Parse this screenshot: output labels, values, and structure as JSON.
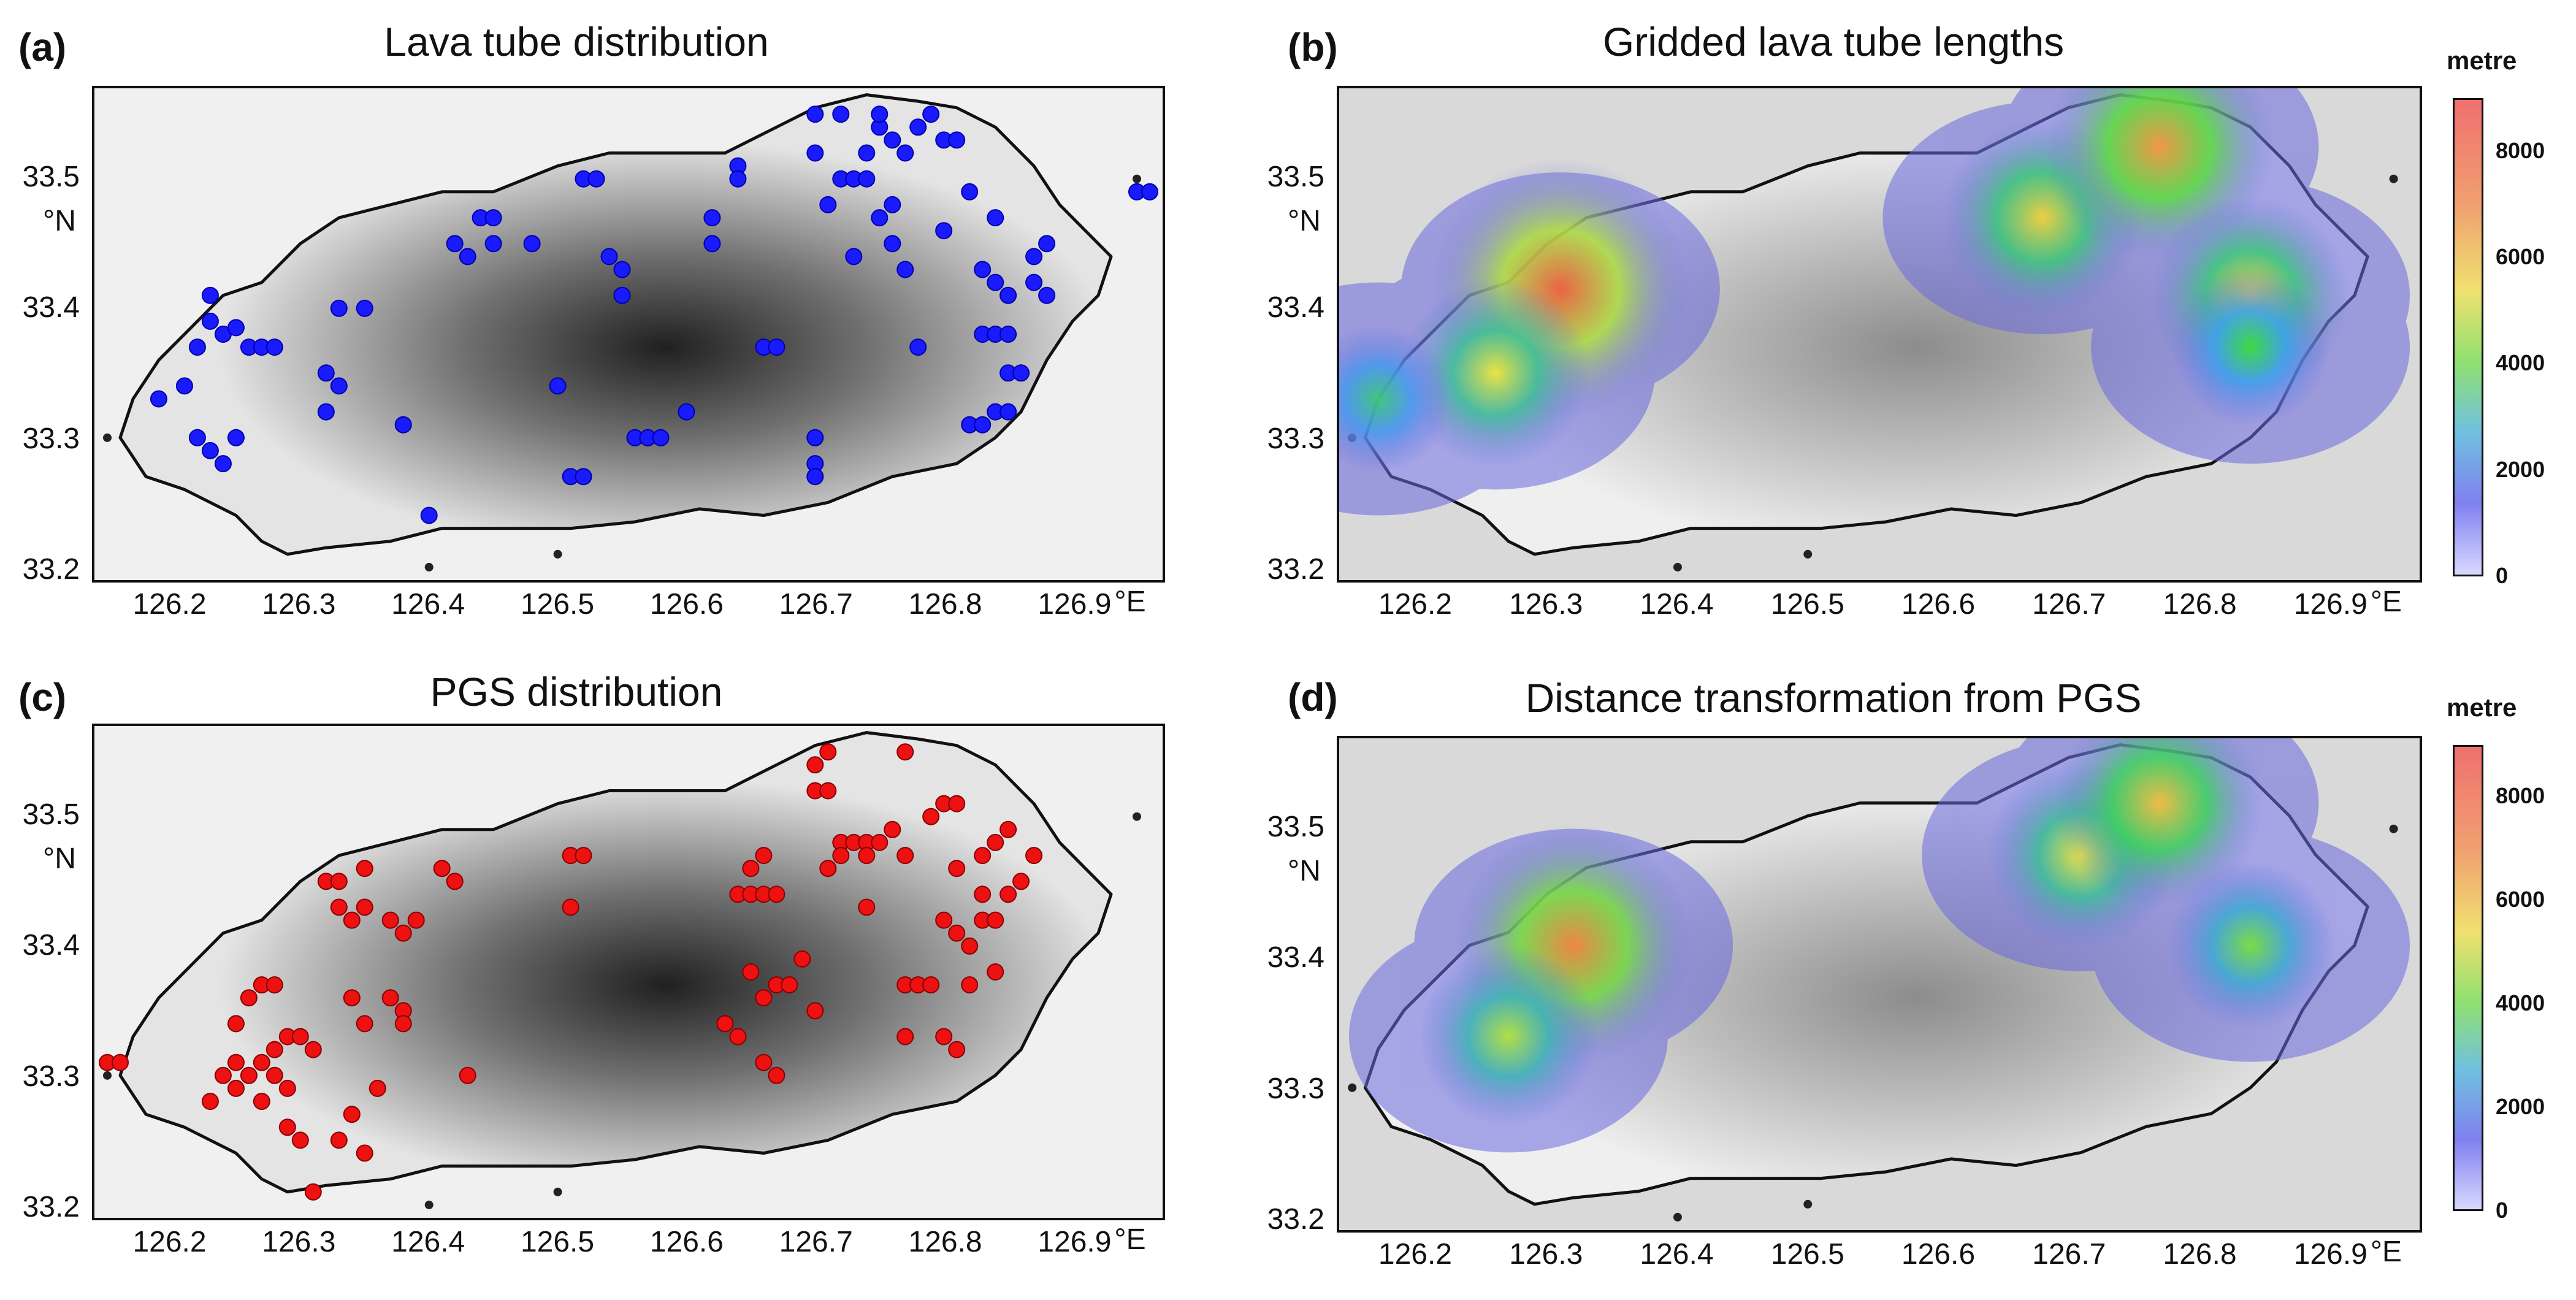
{
  "panels": [
    {
      "id": "a",
      "label": "(a)",
      "title": "Lava tube distribution",
      "kind": "points",
      "point_color": "#1a1aff",
      "background": "#f0f0f0"
    },
    {
      "id": "b",
      "label": "(b)",
      "title": "Gridded lava tube lengths",
      "kind": "heat",
      "background": "#d9d9d9",
      "colorbar": {
        "title": "metre",
        "ticks": [
          "8000",
          "6000",
          "4000",
          "2000",
          "0"
        ]
      }
    },
    {
      "id": "c",
      "label": "(c)",
      "title": "PGS distribution",
      "kind": "points",
      "point_color": "#ee1111",
      "background": "#f0f0f0"
    },
    {
      "id": "d",
      "label": "(d)",
      "title": "Distance transformation from PGS",
      "kind": "heat",
      "background": "#d9d9d9",
      "colorbar": {
        "title": "metre",
        "ticks": [
          "8000",
          "6000",
          "4000",
          "2000",
          "0"
        ]
      }
    }
  ],
  "axes": {
    "y_ticks": [
      "33.5",
      "33.4",
      "33.3",
      "33.2"
    ],
    "y_unit": "°N",
    "x_ticks": [
      "126.2",
      "126.3",
      "126.4",
      "126.5",
      "126.6",
      "126.7",
      "126.8",
      "126.9"
    ],
    "x_unit": "°E"
  },
  "chart_data": [
    {
      "type": "scatter",
      "title": "Lava tube distribution",
      "xlabel": "°E",
      "ylabel": "°N",
      "xlim": [
        126.14,
        126.97
      ],
      "ylim": [
        33.19,
        33.57
      ],
      "series": [
        {
          "name": "Lava tubes",
          "color": "#1a1aff",
          "points": [
            [
              126.19,
              33.33
            ],
            [
              126.21,
              33.34
            ],
            [
              126.22,
              33.3
            ],
            [
              126.23,
              33.29
            ],
            [
              126.22,
              33.37
            ],
            [
              126.23,
              33.39
            ],
            [
              126.23,
              33.41
            ],
            [
              126.24,
              33.38
            ],
            [
              126.25,
              33.385
            ],
            [
              126.26,
              33.37
            ],
            [
              126.27,
              33.37
            ],
            [
              126.28,
              33.37
            ],
            [
              126.25,
              33.3
            ],
            [
              126.24,
              33.28
            ],
            [
              126.33,
              33.4
            ],
            [
              126.35,
              33.4
            ],
            [
              126.32,
              33.35
            ],
            [
              126.33,
              33.34
            ],
            [
              126.32,
              33.32
            ],
            [
              126.38,
              33.31
            ],
            [
              126.4,
              33.24
            ],
            [
              126.43,
              33.44
            ],
            [
              126.44,
              33.47
            ],
            [
              126.45,
              33.47
            ],
            [
              126.45,
              33.45
            ],
            [
              126.42,
              33.45
            ],
            [
              126.48,
              33.45
            ],
            [
              126.52,
              33.5
            ],
            [
              126.53,
              33.5
            ],
            [
              126.54,
              33.44
            ],
            [
              126.55,
              33.43
            ],
            [
              126.55,
              33.41
            ],
            [
              126.5,
              33.34
            ],
            [
              126.51,
              33.27
            ],
            [
              126.52,
              33.27
            ],
            [
              126.56,
              33.3
            ],
            [
              126.57,
              33.3
            ],
            [
              126.58,
              33.3
            ],
            [
              126.6,
              33.32
            ],
            [
              126.62,
              33.47
            ],
            [
              126.62,
              33.45
            ],
            [
              126.64,
              33.51
            ],
            [
              126.64,
              33.5
            ],
            [
              126.66,
              33.37
            ],
            [
              126.67,
              33.37
            ],
            [
              126.7,
              33.3
            ],
            [
              126.7,
              33.28
            ],
            [
              126.7,
              33.27
            ],
            [
              126.7,
              33.55
            ],
            [
              126.72,
              33.55
            ],
            [
              126.7,
              33.52
            ],
            [
              126.71,
              33.48
            ],
            [
              126.72,
              33.5
            ],
            [
              126.73,
              33.5
            ],
            [
              126.74,
              33.52
            ],
            [
              126.75,
              33.54
            ],
            [
              126.75,
              33.55
            ],
            [
              126.76,
              33.53
            ],
            [
              126.77,
              33.52
            ],
            [
              126.78,
              33.54
            ],
            [
              126.79,
              33.55
            ],
            [
              126.8,
              33.53
            ],
            [
              126.81,
              33.53
            ],
            [
              126.76,
              33.48
            ],
            [
              126.75,
              33.47
            ],
            [
              126.76,
              33.45
            ],
            [
              126.74,
              33.5
            ],
            [
              126.73,
              33.44
            ],
            [
              126.77,
              33.43
            ],
            [
              126.78,
              33.37
            ],
            [
              126.8,
              33.46
            ],
            [
              126.82,
              33.49
            ],
            [
              126.84,
              33.47
            ],
            [
              126.83,
              33.43
            ],
            [
              126.84,
              33.42
            ],
            [
              126.85,
              33.41
            ],
            [
              126.87,
              33.44
            ],
            [
              126.88,
              33.45
            ],
            [
              126.87,
              33.42
            ],
            [
              126.88,
              33.41
            ],
            [
              126.83,
              33.38
            ],
            [
              126.84,
              33.38
            ],
            [
              126.85,
              33.38
            ],
            [
              126.85,
              33.35
            ],
            [
              126.86,
              33.35
            ],
            [
              126.82,
              33.31
            ],
            [
              126.83,
              33.31
            ],
            [
              126.84,
              33.32
            ],
            [
              126.85,
              33.32
            ],
            [
              126.95,
              33.49
            ],
            [
              126.96,
              33.49
            ]
          ]
        }
      ]
    },
    {
      "type": "heatmap",
      "title": "Gridded lava tube lengths",
      "xlabel": "°E",
      "ylabel": "°N",
      "xlim": [
        126.14,
        126.97
      ],
      "ylim": [
        33.19,
        33.57
      ],
      "colorbar": {
        "label": "metre",
        "range": [
          0,
          9000
        ],
        "ticks": [
          0,
          2000,
          4000,
          6000,
          8000
        ]
      },
      "hotspots": [
        {
          "lon": 126.31,
          "lat": 33.415,
          "value": 8000
        },
        {
          "lon": 126.26,
          "lat": 33.35,
          "value": 4500
        },
        {
          "lon": 126.68,
          "lat": 33.47,
          "value": 5000
        },
        {
          "lon": 126.77,
          "lat": 33.525,
          "value": 6500
        },
        {
          "lon": 126.84,
          "lat": 33.41,
          "value": 5000
        },
        {
          "lon": 126.84,
          "lat": 33.37,
          "value": 3000
        },
        {
          "lon": 126.17,
          "lat": 33.33,
          "value": 2500
        }
      ]
    },
    {
      "type": "scatter",
      "title": "PGS distribution",
      "xlabel": "°E",
      "ylabel": "°N",
      "xlim": [
        126.14,
        126.97
      ],
      "ylim": [
        33.19,
        33.57
      ],
      "series": [
        {
          "name": "PGS",
          "color": "#ee1111",
          "points": [
            [
              126.15,
              33.31
            ],
            [
              126.16,
              33.31
            ],
            [
              126.23,
              33.28
            ],
            [
              126.24,
              33.3
            ],
            [
              126.25,
              33.31
            ],
            [
              126.25,
              33.29
            ],
            [
              126.26,
              33.3
            ],
            [
              126.27,
              33.31
            ],
            [
              126.28,
              33.3
            ],
            [
              126.27,
              33.28
            ],
            [
              126.29,
              33.29
            ],
            [
              126.28,
              33.32
            ],
            [
              126.29,
              33.33
            ],
            [
              126.3,
              33.33
            ],
            [
              126.31,
              33.32
            ],
            [
              126.25,
              33.34
            ],
            [
              126.26,
              33.36
            ],
            [
              126.27,
              33.37
            ],
            [
              126.28,
              33.37
            ],
            [
              126.29,
              33.26
            ],
            [
              126.3,
              33.25
            ],
            [
              126.33,
              33.25
            ],
            [
              126.35,
              33.24
            ],
            [
              126.36,
              33.29
            ],
            [
              126.34,
              33.27
            ],
            [
              126.31,
              33.21
            ],
            [
              126.32,
              33.45
            ],
            [
              126.33,
              33.45
            ],
            [
              126.35,
              33.46
            ],
            [
              126.33,
              33.43
            ],
            [
              126.34,
              33.42
            ],
            [
              126.35,
              33.43
            ],
            [
              126.37,
              33.42
            ],
            [
              126.38,
              33.41
            ],
            [
              126.39,
              33.42
            ],
            [
              126.37,
              33.36
            ],
            [
              126.38,
              33.35
            ],
            [
              126.38,
              33.34
            ],
            [
              126.34,
              33.36
            ],
            [
              126.35,
              33.34
            ],
            [
              126.41,
              33.46
            ],
            [
              126.42,
              33.45
            ],
            [
              126.43,
              33.3
            ],
            [
              126.51,
              33.47
            ],
            [
              126.52,
              33.47
            ],
            [
              126.51,
              33.43
            ],
            [
              126.64,
              33.44
            ],
            [
              126.65,
              33.44
            ],
            [
              126.66,
              33.44
            ],
            [
              126.67,
              33.44
            ],
            [
              126.66,
              33.47
            ],
            [
              126.65,
              33.46
            ],
            [
              126.65,
              33.38
            ],
            [
              126.64,
              33.33
            ],
            [
              126.63,
              33.34
            ],
            [
              126.66,
              33.36
            ],
            [
              126.67,
              33.37
            ],
            [
              126.68,
              33.37
            ],
            [
              126.69,
              33.39
            ],
            [
              126.66,
              33.31
            ],
            [
              126.67,
              33.3
            ],
            [
              126.7,
              33.52
            ],
            [
              126.71,
              33.52
            ],
            [
              126.7,
              33.54
            ],
            [
              126.71,
              33.55
            ],
            [
              126.72,
              33.48
            ],
            [
              126.73,
              33.48
            ],
            [
              126.74,
              33.48
            ],
            [
              126.74,
              33.47
            ],
            [
              126.75,
              33.48
            ],
            [
              126.76,
              33.49
            ],
            [
              126.77,
              33.47
            ],
            [
              126.72,
              33.47
            ],
            [
              126.71,
              33.46
            ],
            [
              126.74,
              33.43
            ],
            [
              126.77,
              33.55
            ],
            [
              126.79,
              33.5
            ],
            [
              126.8,
              33.51
            ],
            [
              126.81,
              33.51
            ],
            [
              126.81,
              33.46
            ],
            [
              126.83,
              33.44
            ],
            [
              126.85,
              33.44
            ],
            [
              126.86,
              33.45
            ],
            [
              126.87,
              33.47
            ],
            [
              126.84,
              33.48
            ],
            [
              126.83,
              33.47
            ],
            [
              126.85,
              33.49
            ],
            [
              126.8,
              33.42
            ],
            [
              126.81,
              33.41
            ],
            [
              126.82,
              33.4
            ],
            [
              126.83,
              33.42
            ],
            [
              126.84,
              33.42
            ],
            [
              126.82,
              33.37
            ],
            [
              126.84,
              33.38
            ],
            [
              126.77,
              33.37
            ],
            [
              126.78,
              33.37
            ],
            [
              126.8,
              33.33
            ],
            [
              126.81,
              33.32
            ],
            [
              126.77,
              33.33
            ],
            [
              126.7,
              33.35
            ],
            [
              126.79,
              33.37
            ]
          ]
        }
      ]
    },
    {
      "type": "heatmap",
      "title": "Distance transformation from PGS",
      "xlabel": "°E",
      "ylabel": "°N",
      "xlim": [
        126.14,
        126.97
      ],
      "ylim": [
        33.19,
        33.57
      ],
      "colorbar": {
        "label": "metre",
        "range": [
          0,
          9000
        ],
        "ticks": [
          0,
          2000,
          4000,
          6000,
          8000
        ]
      },
      "hotspots": [
        {
          "lon": 126.32,
          "lat": 33.41,
          "value": 7000
        },
        {
          "lon": 126.27,
          "lat": 33.34,
          "value": 4000
        },
        {
          "lon": 126.71,
          "lat": 33.48,
          "value": 4500
        },
        {
          "lon": 126.77,
          "lat": 33.52,
          "value": 5500
        },
        {
          "lon": 126.84,
          "lat": 33.41,
          "value": 3500
        }
      ]
    }
  ]
}
